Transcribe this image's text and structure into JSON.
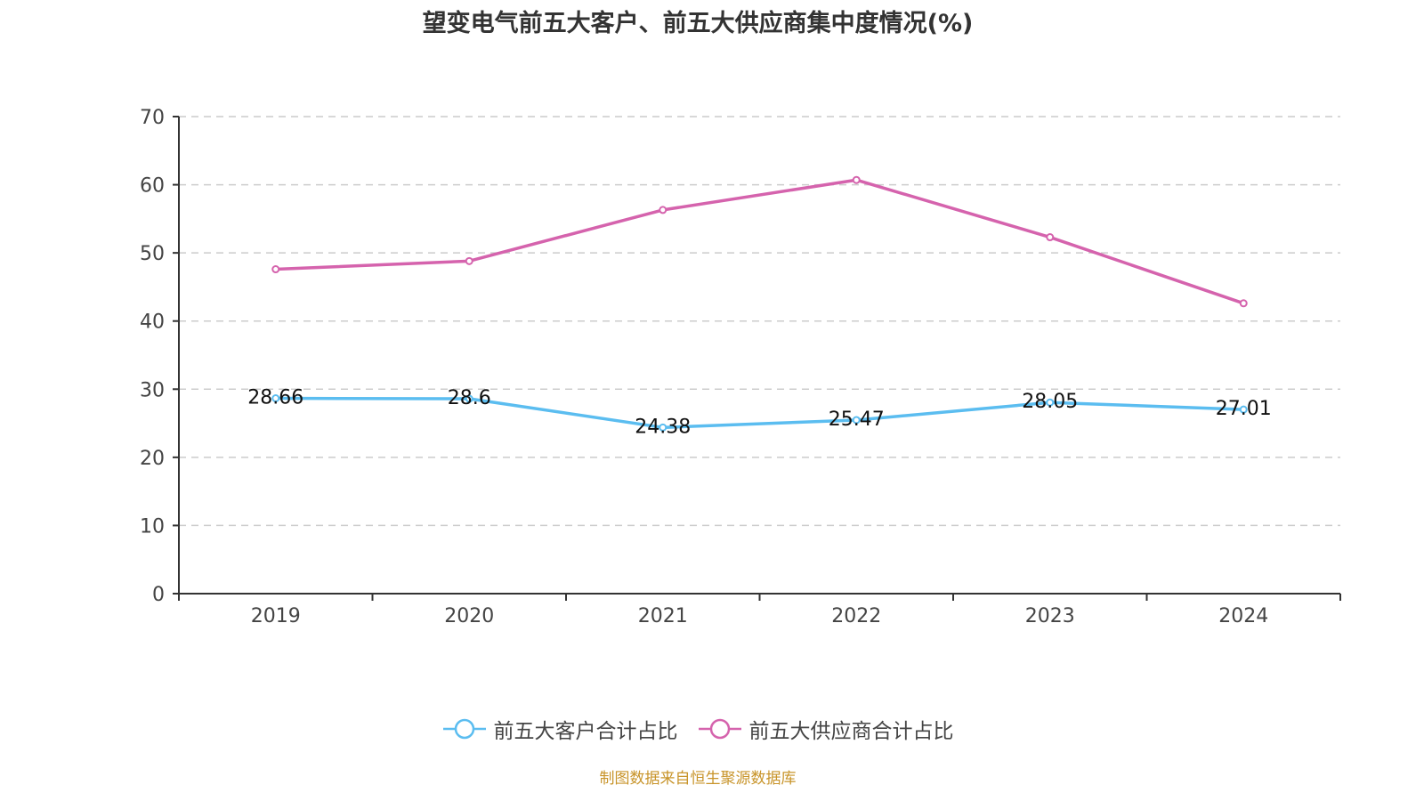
{
  "colors": {
    "series_customers": "#5bbdf0",
    "series_suppliers": "#d563ad",
    "axis": "#333333",
    "grid": "#cccccc",
    "source_text": "#c8942a"
  },
  "source_note": "制图数据来自恒生聚源数据库",
  "chart_data": {
    "type": "line",
    "title": "望变电气前五大客户、前五大供应商集中度情况(%)",
    "xlabel": "",
    "ylabel": "",
    "categories": [
      "2019",
      "2020",
      "2021",
      "2022",
      "2023",
      "2024"
    ],
    "ylim": [
      0,
      70
    ],
    "yticks": [
      "0",
      "10",
      "20",
      "30",
      "40",
      "50",
      "60",
      "70"
    ],
    "grid": true,
    "legend_position": "bottom",
    "series": [
      {
        "name": "前五大客户合计占比",
        "values": [
          28.66,
          28.6,
          24.38,
          25.47,
          28.05,
          27.01
        ],
        "labels": [
          "28.66",
          "28.6",
          "24.38",
          "25.47",
          "28.05",
          "27.01"
        ],
        "show_labels": true
      },
      {
        "name": "前五大供应商合计占比",
        "values": [
          47.6,
          48.8,
          56.3,
          60.7,
          52.3,
          42.6
        ],
        "show_labels": false
      }
    ]
  }
}
